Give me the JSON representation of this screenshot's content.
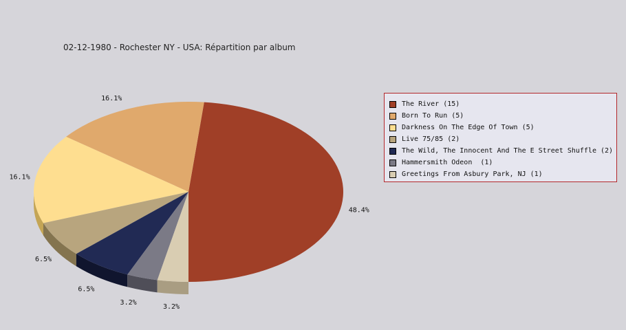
{
  "chart_data": {
    "type": "pie",
    "title": "02-12-1980 - Rochester NY - USA:  Répartition par album",
    "slices": [
      {
        "label": "The River (15)",
        "value": 15,
        "percent_label": "48.4%",
        "color": "#a03f27",
        "side_color": "#6b0f02"
      },
      {
        "label": "Born To Run (5)",
        "value": 5,
        "percent_label": "16.1%",
        "color": "#e0a96c",
        "side_color": "#a87438"
      },
      {
        "label": "Darkness On The Edge Of Town (5)",
        "value": 5,
        "percent_label": "16.1%",
        "color": "#fede90",
        "side_color": "#c4a555"
      },
      {
        "label": "Live 75/85 (2)",
        "value": 2,
        "percent_label": "6.5%",
        "color": "#b8a57e",
        "side_color": "#84744f"
      },
      {
        "label": "The Wild, The Innocent And The E Street Shuffle (2)",
        "value": 2,
        "percent_label": "6.5%",
        "color": "#212a54",
        "side_color": "#10152e"
      },
      {
        "label": "Hammersmith Odeon  (1)",
        "value": 1,
        "percent_label": "3.2%",
        "color": "#7b7a86",
        "side_color": "#4f4e58"
      },
      {
        "label": "Greetings From Asbury Park, NJ (1)",
        "value": 1,
        "percent_label": "3.2%",
        "color": "#d9cdb2",
        "side_color": "#a99d82"
      }
    ],
    "legend_placement": "right"
  }
}
